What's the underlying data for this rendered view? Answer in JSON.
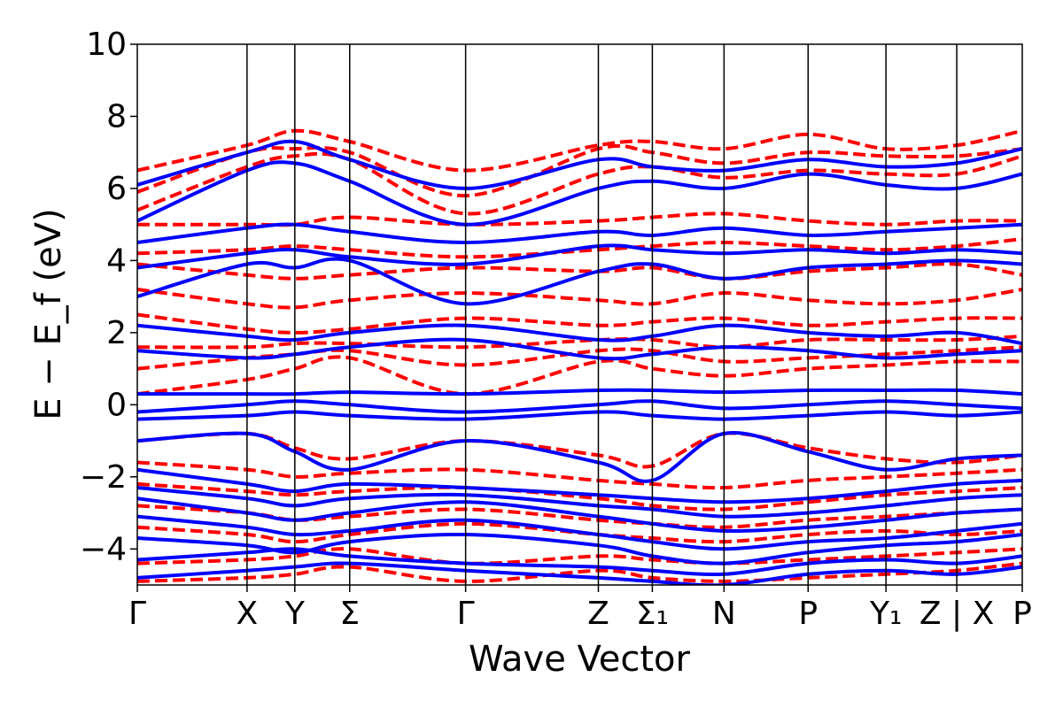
{
  "chart_data": {
    "type": "line",
    "title": "",
    "xlabel": "Wave Vector",
    "ylabel": "E − E_f (eV)",
    "ylim": [
      -5,
      10
    ],
    "yticks": [
      -4,
      -2,
      0,
      2,
      4,
      6,
      8,
      10
    ],
    "ytick_labels": [
      "−4",
      "−2",
      "0",
      "2",
      "4",
      "6",
      "8",
      "10"
    ],
    "grid": false,
    "legend": "none",
    "high_symmetry_points": [
      {
        "label": "Γ",
        "x": 0.0
      },
      {
        "label": "X",
        "x": 0.124
      },
      {
        "label": "Y",
        "x": 0.178
      },
      {
        "label": "Σ",
        "x": 0.24
      },
      {
        "label": "Γ",
        "x": 0.371
      },
      {
        "label": "Z",
        "x": 0.521
      },
      {
        "label": "Σ₁",
        "x": 0.582
      },
      {
        "label": "N",
        "x": 0.663
      },
      {
        "label": "P",
        "x": 0.758
      },
      {
        "label": "Y₁",
        "x": 0.846
      },
      {
        "label": "Z | X",
        "x": 0.926
      },
      {
        "label": "P",
        "x": 1.0
      }
    ],
    "series": [
      {
        "style": "solid",
        "color": "#0000ff",
        "bands": [
          [
            -4.8,
            -4.6,
            -4.5,
            -4.4,
            -4.6,
            -4.8,
            -4.9,
            -5.0,
            -4.7,
            -4.6,
            -4.7,
            -4.5
          ],
          [
            -4.3,
            -4.1,
            -4.0,
            -4.2,
            -4.4,
            -4.5,
            -4.6,
            -4.7,
            -4.4,
            -4.3,
            -4.4,
            -4.2
          ],
          [
            -3.7,
            -3.9,
            -4.1,
            -3.8,
            -3.6,
            -3.9,
            -4.2,
            -4.4,
            -4.1,
            -3.9,
            -3.8,
            -3.6
          ],
          [
            -3.1,
            -3.4,
            -3.6,
            -3.5,
            -3.2,
            -3.6,
            -3.8,
            -4.0,
            -3.8,
            -3.7,
            -3.5,
            -3.3
          ],
          [
            -2.6,
            -3.0,
            -3.2,
            -3.0,
            -2.7,
            -3.1,
            -3.3,
            -3.5,
            -3.4,
            -3.2,
            -3.0,
            -2.9
          ],
          [
            -2.3,
            -2.6,
            -2.8,
            -2.6,
            -2.5,
            -2.8,
            -2.9,
            -3.1,
            -3.0,
            -2.8,
            -2.6,
            -2.5
          ],
          [
            -1.8,
            -2.2,
            -2.4,
            -2.2,
            -2.3,
            -2.5,
            -2.6,
            -2.7,
            -2.6,
            -2.4,
            -2.2,
            -2.1
          ],
          [
            -1.0,
            -0.8,
            -1.3,
            -1.8,
            -1.0,
            -1.6,
            -2.1,
            -0.8,
            -1.3,
            -1.8,
            -1.5,
            -1.4
          ],
          [
            -0.4,
            -0.3,
            -0.2,
            -0.3,
            -0.4,
            -0.2,
            -0.3,
            -0.4,
            -0.3,
            -0.2,
            -0.3,
            -0.2
          ],
          [
            -0.2,
            0.0,
            0.1,
            0.0,
            -0.2,
            0.0,
            0.1,
            -0.1,
            0.0,
            0.1,
            0.0,
            -0.1
          ],
          [
            0.3,
            0.3,
            0.3,
            0.35,
            0.3,
            0.4,
            0.4,
            0.35,
            0.4,
            0.4,
            0.4,
            0.3
          ],
          [
            1.5,
            1.3,
            1.4,
            1.6,
            1.8,
            1.3,
            1.4,
            1.6,
            1.5,
            1.3,
            1.4,
            1.5
          ],
          [
            2.2,
            1.9,
            1.8,
            2.0,
            2.2,
            1.8,
            1.9,
            2.2,
            2.0,
            1.9,
            2.0,
            1.7
          ],
          [
            3.0,
            3.9,
            3.8,
            4.0,
            2.8,
            3.7,
            3.9,
            3.5,
            3.8,
            3.9,
            4.0,
            3.9
          ],
          [
            3.8,
            4.2,
            4.3,
            4.1,
            3.9,
            4.4,
            4.3,
            4.2,
            4.3,
            4.2,
            4.3,
            4.2
          ],
          [
            4.5,
            4.9,
            5.0,
            4.8,
            4.5,
            4.8,
            4.7,
            4.9,
            4.7,
            4.8,
            4.9,
            5.0
          ],
          [
            5.1,
            6.5,
            6.7,
            6.2,
            5.0,
            6.0,
            6.2,
            6.0,
            6.4,
            6.1,
            6.0,
            6.4
          ],
          [
            6.1,
            7.0,
            7.3,
            6.8,
            6.0,
            6.8,
            6.6,
            6.5,
            6.8,
            6.6,
            6.7,
            7.1
          ]
        ]
      },
      {
        "style": "dashed",
        "color": "#ff0000",
        "bands": [
          [
            -4.9,
            -4.8,
            -4.7,
            -4.5,
            -4.9,
            -4.6,
            -4.8,
            -4.9,
            -4.8,
            -4.7,
            -4.6,
            -4.4
          ],
          [
            -4.4,
            -4.3,
            -4.2,
            -4.0,
            -4.4,
            -4.2,
            -4.3,
            -4.4,
            -4.3,
            -4.2,
            -4.1,
            -4.0
          ],
          [
            -3.4,
            -3.6,
            -3.8,
            -3.6,
            -3.3,
            -3.6,
            -3.7,
            -3.8,
            -3.6,
            -3.5,
            -3.6,
            -3.5
          ],
          [
            -2.8,
            -3.0,
            -3.2,
            -3.1,
            -2.9,
            -3.2,
            -3.3,
            -3.4,
            -3.2,
            -3.1,
            -3.0,
            -2.9
          ],
          [
            -2.2,
            -2.4,
            -2.5,
            -2.4,
            -2.3,
            -2.6,
            -2.8,
            -2.9,
            -2.7,
            -2.5,
            -2.4,
            -2.3
          ],
          [
            -1.6,
            -1.8,
            -2.0,
            -1.9,
            -1.8,
            -2.1,
            -2.2,
            -2.3,
            -2.1,
            -2.0,
            -1.9,
            -1.8
          ],
          [
            -1.0,
            -0.8,
            -1.2,
            -1.5,
            -1.0,
            -1.4,
            -1.7,
            -0.8,
            -1.2,
            -1.5,
            -1.6,
            -1.4
          ],
          [
            0.3,
            0.7,
            1.0,
            1.3,
            0.3,
            1.2,
            1.0,
            0.8,
            1.0,
            1.1,
            1.2,
            1.2
          ],
          [
            1.0,
            1.3,
            1.4,
            1.5,
            1.1,
            1.5,
            1.5,
            1.2,
            1.3,
            1.4,
            1.5,
            1.6
          ],
          [
            1.6,
            1.6,
            1.7,
            1.7,
            1.6,
            1.8,
            1.8,
            1.6,
            1.8,
            1.8,
            1.8,
            1.9
          ],
          [
            2.5,
            2.1,
            2.0,
            2.1,
            2.4,
            2.2,
            2.3,
            2.4,
            2.2,
            2.3,
            2.4,
            2.4
          ],
          [
            3.2,
            2.8,
            2.7,
            2.9,
            3.1,
            2.9,
            2.8,
            3.1,
            2.9,
            2.8,
            2.9,
            3.2
          ],
          [
            3.9,
            3.6,
            3.5,
            3.6,
            3.8,
            3.7,
            3.8,
            3.5,
            3.7,
            3.8,
            3.9,
            3.6
          ],
          [
            4.2,
            4.3,
            4.4,
            4.3,
            4.1,
            4.3,
            4.4,
            4.5,
            4.4,
            4.3,
            4.4,
            4.6
          ],
          [
            5.0,
            5.0,
            5.0,
            5.2,
            5.0,
            5.1,
            5.2,
            5.3,
            5.1,
            5.0,
            5.1,
            5.1
          ],
          [
            5.4,
            6.6,
            6.9,
            6.8,
            5.3,
            6.4,
            6.6,
            6.3,
            6.5,
            6.4,
            6.4,
            6.9
          ],
          [
            5.9,
            7.0,
            7.1,
            7.0,
            5.8,
            7.1,
            7.0,
            6.7,
            7.0,
            6.9,
            6.9,
            7.1
          ],
          [
            6.5,
            7.2,
            7.6,
            7.3,
            6.5,
            7.2,
            7.3,
            7.1,
            7.5,
            7.1,
            7.2,
            7.6
          ]
        ]
      }
    ]
  }
}
